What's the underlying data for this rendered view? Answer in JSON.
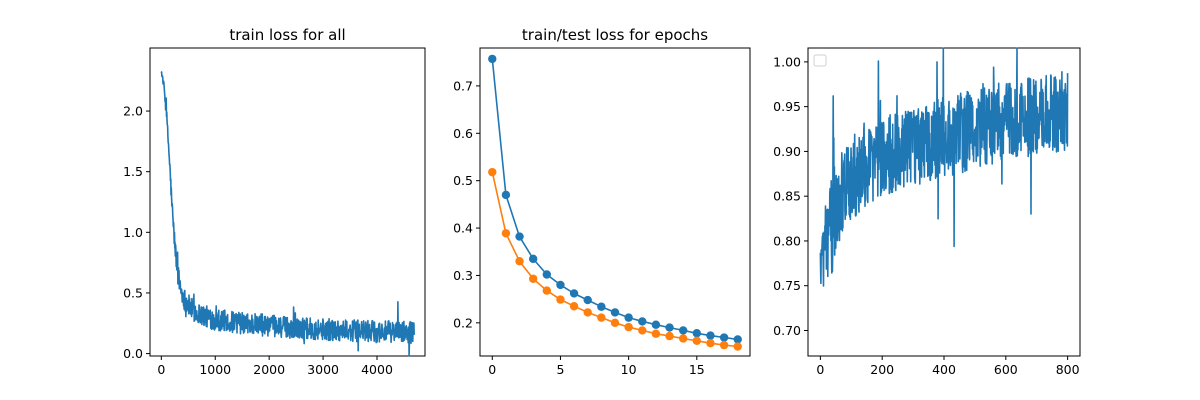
{
  "chart_data": [
    {
      "type": "line",
      "title": "train loss for all",
      "xlabel": "",
      "ylabel": "",
      "xlim": [
        -210,
        4890
      ],
      "ylim": [
        -0.02,
        2.52
      ],
      "xticks": [
        0,
        1000,
        2000,
        3000,
        4000
      ],
      "xtick_labels": [
        "0",
        "1000",
        "2000",
        "3000",
        "4000"
      ],
      "yticks": [
        0.0,
        0.5,
        1.0,
        1.5,
        2.0
      ],
      "ytick_labels": [
        "0.0",
        "0.5",
        "1.0",
        "1.5",
        "2.0"
      ],
      "grid": false,
      "series": [
        {
          "color": "#1f77b4",
          "noisy": true,
          "x": [
            0,
            50,
            100,
            150,
            200,
            250,
            300,
            350,
            400,
            500,
            600,
            800,
            1000,
            1500,
            2000,
            2500,
            3000,
            3500,
            4000,
            4500,
            4690
          ],
          "y": [
            2.33,
            2.2,
            1.95,
            1.6,
            1.2,
            0.9,
            0.68,
            0.55,
            0.47,
            0.4,
            0.35,
            0.31,
            0.28,
            0.25,
            0.23,
            0.21,
            0.2,
            0.19,
            0.18,
            0.18,
            0.17
          ],
          "noise": [
            0.02,
            0.03,
            0.05,
            0.06,
            0.07,
            0.08,
            0.09,
            0.09,
            0.09,
            0.09,
            0.09,
            0.09,
            0.09,
            0.09,
            0.09,
            0.09,
            0.09,
            0.09,
            0.09,
            0.09,
            0.09
          ]
        }
      ]
    },
    {
      "type": "line",
      "title": "train/test loss for epochs",
      "xlabel": "",
      "ylabel": "",
      "xlim": [
        -0.9,
        18.9
      ],
      "ylim": [
        0.13,
        0.78
      ],
      "xticks": [
        0,
        5,
        10,
        15
      ],
      "xtick_labels": [
        "0",
        "5",
        "10",
        "15"
      ],
      "yticks": [
        0.2,
        0.3,
        0.4,
        0.5,
        0.6,
        0.7
      ],
      "ytick_labels": [
        "0.2",
        "0.3",
        "0.4",
        "0.5",
        "0.6",
        "0.7"
      ],
      "grid": false,
      "x": [
        0,
        1,
        2,
        3,
        4,
        5,
        6,
        7,
        8,
        9,
        10,
        11,
        12,
        13,
        14,
        15,
        16,
        17,
        18
      ],
      "series": [
        {
          "color": "#1f77b4",
          "marker": "circle",
          "values": [
            0.757,
            0.47,
            0.382,
            0.335,
            0.302,
            0.28,
            0.262,
            0.248,
            0.234,
            0.222,
            0.211,
            0.203,
            0.196,
            0.19,
            0.184,
            0.178,
            0.173,
            0.169,
            0.165
          ]
        },
        {
          "color": "#ff7f0e",
          "marker": "circle",
          "values": [
            0.518,
            0.389,
            0.33,
            0.293,
            0.268,
            0.249,
            0.235,
            0.222,
            0.211,
            0.2,
            0.191,
            0.184,
            0.177,
            0.172,
            0.167,
            0.162,
            0.157,
            0.153,
            0.15
          ]
        }
      ]
    },
    {
      "type": "line",
      "title": "",
      "xlabel": "",
      "ylabel": "",
      "xlim": [
        -40,
        840
      ],
      "ylim": [
        0.6715,
        1.0155
      ],
      "xticks": [
        0,
        200,
        400,
        600,
        800
      ],
      "xtick_labels": [
        "0",
        "200",
        "400",
        "600",
        "800"
      ],
      "yticks": [
        0.7,
        0.75,
        0.8,
        0.85,
        0.9,
        0.95,
        1.0
      ],
      "ytick_labels": [
        "0.70",
        "0.75",
        "0.80",
        "0.85",
        "0.90",
        "0.95",
        "1.00"
      ],
      "grid": false,
      "legend": "top-left",
      "series": [
        {
          "color": "#1f77b4",
          "noisy": true,
          "x": [
            0,
            20,
            40,
            60,
            80,
            100,
            150,
            200,
            300,
            400,
            500,
            600,
            700,
            800
          ],
          "y": [
            0.77,
            0.8,
            0.82,
            0.84,
            0.86,
            0.87,
            0.885,
            0.895,
            0.905,
            0.915,
            0.925,
            0.935,
            0.94,
            0.945
          ],
          "noise": [
            0.03,
            0.05,
            0.06,
            0.05,
            0.05,
            0.05,
            0.05,
            0.045,
            0.045,
            0.045,
            0.045,
            0.045,
            0.045,
            0.045
          ]
        }
      ]
    }
  ]
}
